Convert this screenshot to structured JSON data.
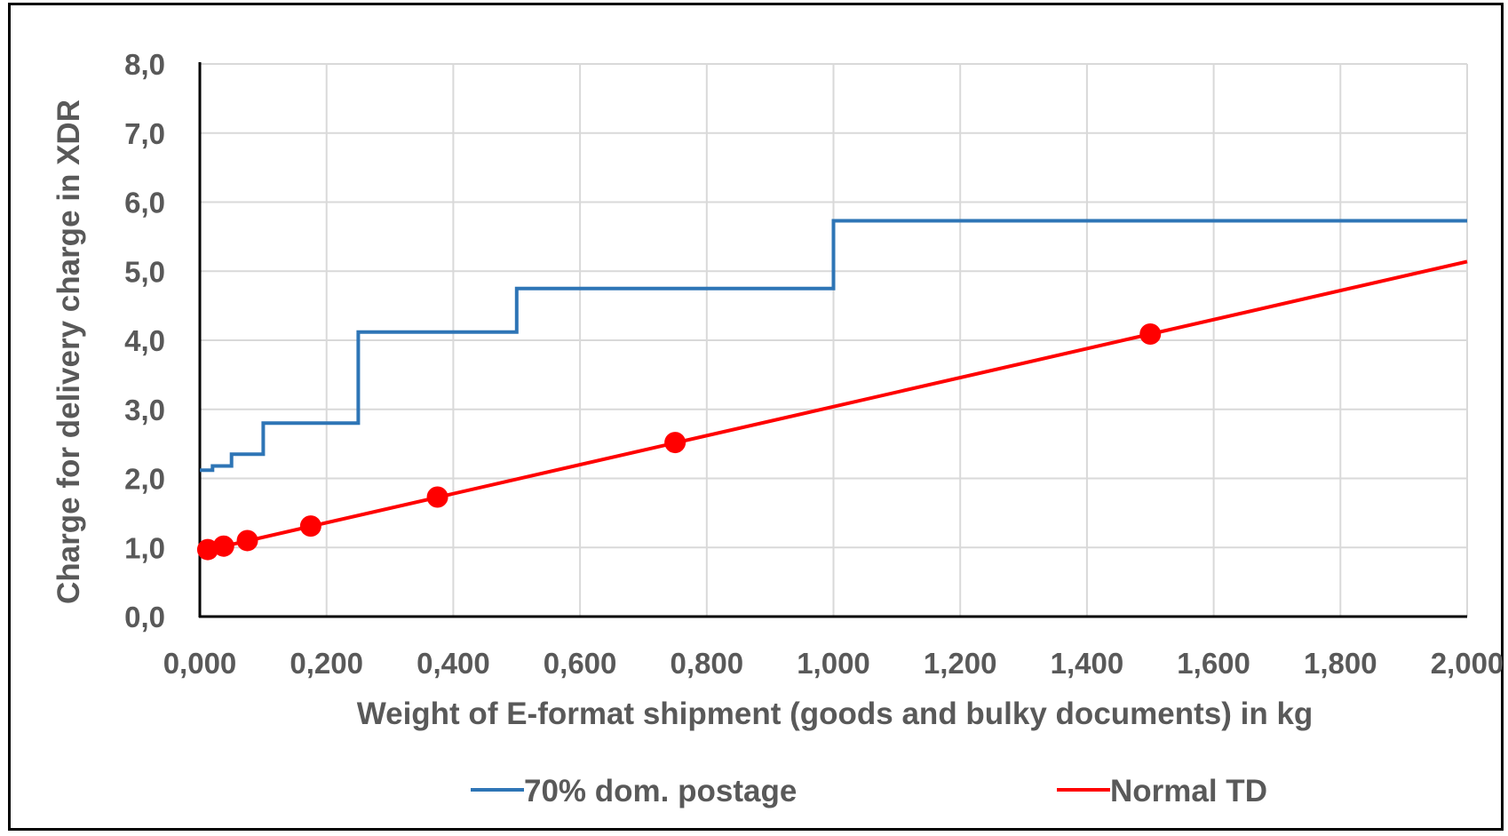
{
  "chart_data": {
    "type": "line",
    "title": "",
    "xlabel": "Weight of E-format shipment (goods and bulky documents) in kg",
    "ylabel": "Charge for delivery charge in XDR",
    "xlim": [
      0,
      2
    ],
    "ylim": [
      0,
      8
    ],
    "x_ticks": [
      "0,000",
      "0,200",
      "0,400",
      "0,600",
      "0,800",
      "1,000",
      "1,200",
      "1,400",
      "1,600",
      "1,800",
      "2,000"
    ],
    "y_ticks": [
      "0,0",
      "1,0",
      "2,0",
      "3,0",
      "4,0",
      "5,0",
      "6,0",
      "7,0",
      "8,0"
    ],
    "x_tick_values": [
      0,
      0.2,
      0.4,
      0.6,
      0.8,
      1.0,
      1.2,
      1.4,
      1.6,
      1.8,
      2.0
    ],
    "y_tick_values": [
      0,
      1,
      2,
      3,
      4,
      5,
      6,
      7,
      8
    ],
    "grid": true,
    "legend_position": "bottom",
    "series": [
      {
        "name": "70% dom. postage",
        "color": "#2e75b6",
        "style": "step",
        "x": [
          0.0,
          0.02,
          0.02,
          0.05,
          0.05,
          0.1,
          0.1,
          0.25,
          0.25,
          0.5,
          0.5,
          1.0,
          1.0,
          2.0
        ],
        "y": [
          2.12,
          2.12,
          2.18,
          2.18,
          2.35,
          2.35,
          2.8,
          2.8,
          4.12,
          4.12,
          4.75,
          4.75,
          5.73,
          5.73
        ]
      },
      {
        "name": "Normal TD",
        "color": "#ff0000",
        "style": "line-with-markers",
        "x": [
          0.01,
          2.0
        ],
        "y": [
          0.96,
          5.14
        ],
        "markers": {
          "x": [
            0.0125,
            0.0375,
            0.075,
            0.175,
            0.375,
            0.75,
            1.5
          ],
          "y": [
            0.97,
            1.02,
            1.1,
            1.31,
            1.73,
            2.52,
            4.09
          ]
        }
      }
    ]
  }
}
